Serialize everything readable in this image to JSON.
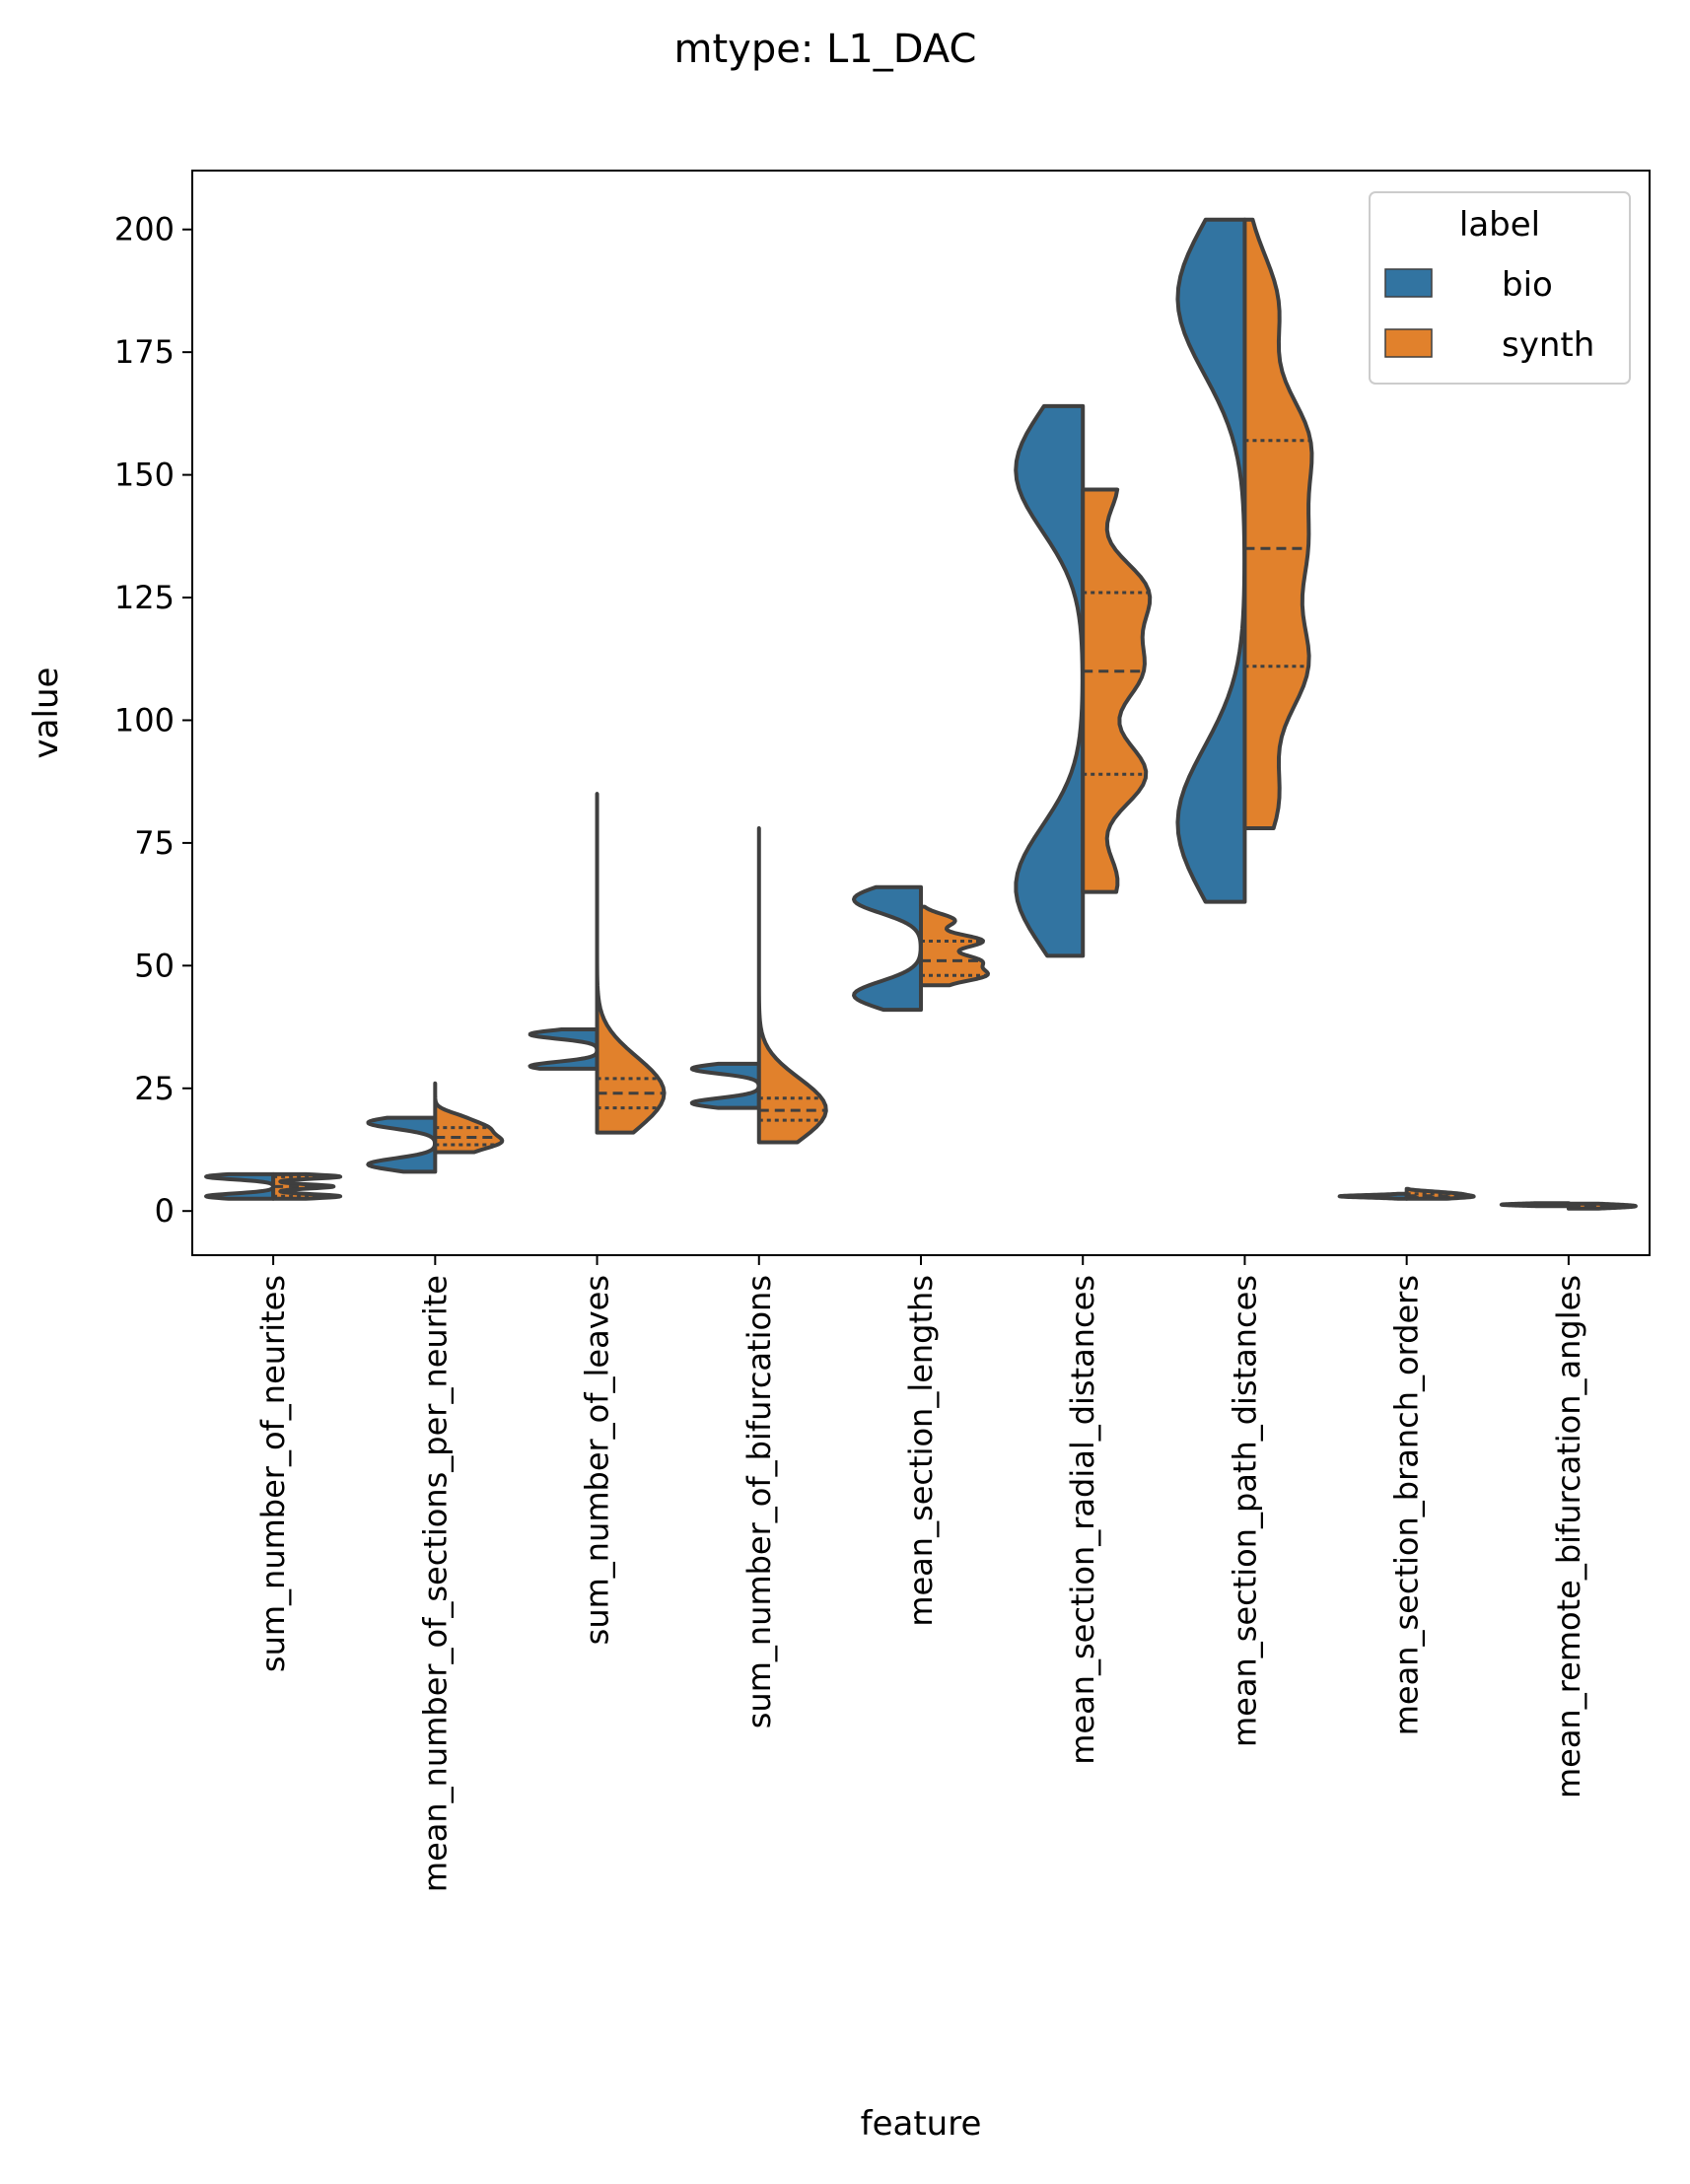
{
  "chart_data": {
    "type": "violin",
    "title": "mtype: L1_DAC",
    "xlabel": "feature",
    "ylabel": "value",
    "ylim": [
      -9,
      212
    ],
    "yticks": [
      0,
      25,
      50,
      75,
      100,
      125,
      150,
      175,
      200
    ],
    "grid": false,
    "split": true,
    "inner": "quartile",
    "legend": {
      "title": "label",
      "placement": "upper right",
      "entries": [
        {
          "label": "bio",
          "color": "#3274a1"
        },
        {
          "label": "synth",
          "color": "#e1812c"
        }
      ]
    },
    "categories": [
      "sum_number_of_neurites",
      "mean_number_of_sections_per_neurite",
      "sum_number_of_leaves",
      "sum_number_of_bifurcations",
      "mean_section_lengths",
      "mean_section_radial_distances",
      "mean_section_path_distances",
      "mean_section_branch_orders",
      "mean_remote_bifurcation_angles"
    ],
    "series": [
      {
        "name": "bio",
        "color": "#3274a1",
        "side": "left",
        "ranges": [
          [
            2.5,
            7.5
          ],
          [
            8,
            19
          ],
          [
            29,
            37
          ],
          [
            21,
            30
          ],
          [
            41,
            66
          ],
          [
            52,
            164
          ],
          [
            63,
            202
          ],
          [
            2.5,
            3.5
          ],
          [
            1,
            1.6
          ]
        ],
        "modes": [
          [
            3,
            7
          ],
          [
            9.5,
            18
          ],
          [
            29.5,
            36
          ],
          [
            22,
            29
          ],
          [
            44,
            63.5
          ],
          [
            66,
            151
          ],
          [
            79,
            186
          ],
          [
            3
          ],
          [
            1.3
          ]
        ]
      },
      {
        "name": "synth",
        "color": "#e1812c",
        "side": "right",
        "ranges": [
          [
            2.5,
            7.5
          ],
          [
            12,
            26
          ],
          [
            16,
            85
          ],
          [
            14,
            78
          ],
          [
            46,
            62
          ],
          [
            65,
            147
          ],
          [
            78,
            202
          ],
          [
            2.5,
            4.5
          ],
          [
            0.5,
            1.5
          ]
        ],
        "quartiles": [
          [
            3,
            5,
            7
          ],
          [
            13.5,
            15,
            17
          ],
          [
            21,
            24,
            27
          ],
          [
            18.5,
            20.5,
            23
          ],
          [
            48,
            51,
            55
          ],
          [
            89,
            110,
            126
          ],
          [
            111,
            135,
            157
          ],
          [
            2.8,
            3.1,
            3.5
          ],
          [
            0.8,
            1.0,
            1.2
          ]
        ]
      }
    ]
  }
}
